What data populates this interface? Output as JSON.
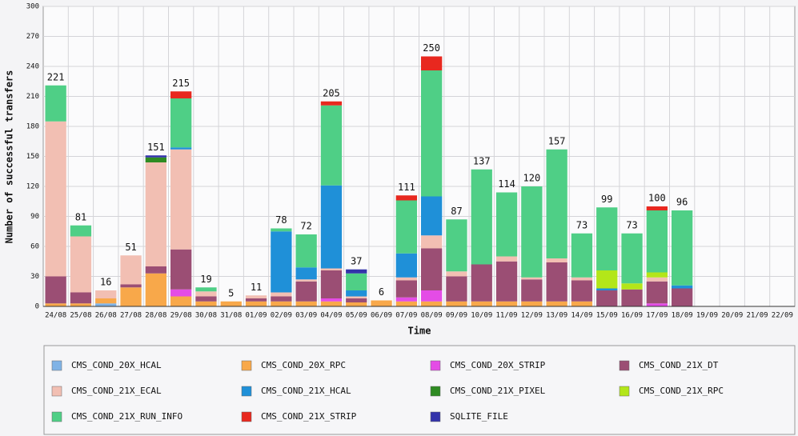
{
  "chart_data": {
    "type": "stacked_bar",
    "xlabel": "Time",
    "ylabel": "Number of successful transfers",
    "categories": [
      "24/08",
      "25/08",
      "26/08",
      "27/08",
      "28/08",
      "29/08",
      "30/08",
      "31/08",
      "01/09",
      "02/09",
      "03/09",
      "04/09",
      "05/09",
      "06/09",
      "07/09",
      "08/09",
      "09/09",
      "10/09",
      "11/09",
      "12/09",
      "13/09",
      "14/09",
      "15/09",
      "16/09",
      "17/09",
      "18/09",
      "19/09",
      "20/09",
      "21/09",
      "22/09"
    ],
    "series": [
      {
        "name": "CMS_COND_20X_HCAL",
        "color": "#80b3e6",
        "values": [
          0,
          0,
          3,
          0,
          0,
          0,
          0,
          0,
          0,
          0,
          0,
          0,
          0,
          0,
          0,
          0,
          0,
          0,
          0,
          0,
          0,
          0,
          0,
          0,
          0,
          0,
          0,
          0,
          0,
          0
        ]
      },
      {
        "name": "CMS_COND_20X_RPC",
        "color": "#f8a84a",
        "values": [
          3,
          3,
          5,
          19,
          33,
          10,
          5,
          5,
          5,
          5,
          5,
          5,
          4,
          6,
          5,
          5,
          5,
          5,
          5,
          5,
          5,
          5,
          0,
          0,
          0,
          0,
          0,
          0,
          0,
          0
        ]
      },
      {
        "name": "CMS_COND_20X_STRIP",
        "color": "#e44ce6",
        "values": [
          0,
          0,
          0,
          0,
          0,
          7,
          0,
          0,
          0,
          0,
          0,
          3,
          0,
          0,
          4,
          11,
          0,
          0,
          0,
          0,
          0,
          0,
          0,
          0,
          3,
          0,
          0,
          0,
          0,
          0
        ]
      },
      {
        "name": "CMS_COND_21X_DT",
        "color": "#9b4e74",
        "values": [
          27,
          11,
          0,
          3,
          7,
          40,
          5,
          0,
          3,
          5,
          20,
          28,
          4,
          0,
          17,
          42,
          25,
          37,
          40,
          22,
          39,
          21,
          16,
          17,
          22,
          18,
          0,
          0,
          0,
          0
        ]
      },
      {
        "name": "CMS_COND_21X_ECAL",
        "color": "#f2bfb3",
        "values": [
          155,
          56,
          8,
          29,
          104,
          100,
          5,
          0,
          3,
          4,
          2,
          2,
          2,
          0,
          3,
          13,
          5,
          0,
          5,
          2,
          4,
          3,
          0,
          0,
          4,
          0,
          0,
          0,
          0,
          0
        ]
      },
      {
        "name": "CMS_COND_21X_HCAL",
        "color": "#1f90d8",
        "values": [
          0,
          0,
          0,
          0,
          0,
          2,
          0,
          0,
          0,
          61,
          12,
          83,
          6,
          0,
          24,
          39,
          0,
          0,
          0,
          0,
          0,
          0,
          2,
          0,
          0,
          3,
          0,
          0,
          0,
          0
        ]
      },
      {
        "name": "CMS_COND_21X_PIXEL",
        "color": "#2e8b22",
        "values": [
          0,
          0,
          0,
          0,
          5,
          0,
          0,
          0,
          0,
          0,
          0,
          0,
          0,
          0,
          0,
          0,
          0,
          0,
          0,
          0,
          0,
          0,
          0,
          0,
          0,
          0,
          0,
          0,
          0,
          0
        ]
      },
      {
        "name": "CMS_COND_21X_RPC",
        "color": "#b3e619",
        "values": [
          0,
          0,
          0,
          0,
          0,
          0,
          0,
          0,
          0,
          0,
          0,
          0,
          0,
          0,
          0,
          0,
          0,
          0,
          0,
          0,
          0,
          0,
          18,
          6,
          5,
          0,
          0,
          0,
          0,
          0
        ]
      },
      {
        "name": "CMS_COND_21X_RUN_INFO",
        "color": "#4fcf86",
        "values": [
          36,
          11,
          0,
          0,
          0,
          49,
          4,
          0,
          0,
          3,
          33,
          80,
          17,
          0,
          53,
          126,
          52,
          95,
          64,
          91,
          109,
          44,
          63,
          50,
          62,
          75,
          0,
          0,
          0,
          0
        ]
      },
      {
        "name": "CMS_COND_21X_STRIP",
        "color": "#e8281f",
        "values": [
          0,
          0,
          0,
          0,
          0,
          7,
          0,
          0,
          0,
          0,
          0,
          4,
          0,
          0,
          5,
          14,
          0,
          0,
          0,
          0,
          0,
          0,
          0,
          0,
          4,
          0,
          0,
          0,
          0,
          0
        ]
      },
      {
        "name": "SQLITE_FILE",
        "color": "#3333aa",
        "values": [
          0,
          0,
          0,
          0,
          2,
          0,
          0,
          0,
          0,
          0,
          0,
          0,
          4,
          0,
          0,
          0,
          0,
          0,
          0,
          0,
          0,
          0,
          0,
          0,
          0,
          0,
          0,
          0,
          0,
          0
        ]
      }
    ],
    "totals": [
      221,
      81,
      16,
      51,
      151,
      215,
      19,
      5,
      11,
      78,
      72,
      205,
      37,
      6,
      111,
      250,
      87,
      137,
      114,
      120,
      157,
      73,
      99,
      73,
      100,
      96,
      null,
      null,
      null,
      null
    ],
    "ylim": [
      0,
      300
    ],
    "yticks": [
      0,
      30,
      60,
      90,
      120,
      150,
      180,
      210,
      240,
      270,
      300
    ],
    "grid": true
  }
}
